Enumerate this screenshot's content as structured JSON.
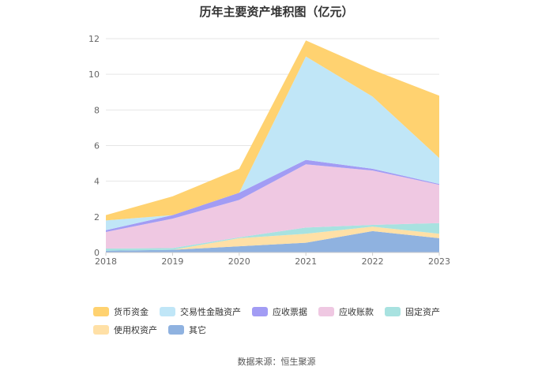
{
  "chart_data": {
    "type": "area",
    "title": "历年主要资产堆积图（亿元）",
    "x": [
      "2018",
      "2019",
      "2020",
      "2021",
      "2022",
      "2023"
    ],
    "ylim": [
      0,
      12
    ],
    "yticks": [
      0,
      2,
      4,
      6,
      8,
      10,
      12
    ],
    "grid": true,
    "legend_position": "bottom",
    "stacked": true,
    "series": [
      {
        "name": "其它",
        "color": "#8fb2e0",
        "values": [
          0.1,
          0.15,
          0.35,
          0.55,
          1.2,
          0.8
        ]
      },
      {
        "name": "使用权资产",
        "color": "#ffe0a6",
        "values": [
          0.0,
          0.0,
          0.45,
          0.5,
          0.25,
          0.25
        ]
      },
      {
        "name": "固定资产",
        "color": "#a8e2e0",
        "values": [
          0.12,
          0.1,
          0.05,
          0.35,
          0.1,
          0.6
        ]
      },
      {
        "name": "应收账款",
        "color": "#efc8e2",
        "values": [
          0.93,
          1.65,
          2.1,
          3.55,
          3.05,
          2.15
        ]
      },
      {
        "name": "应收票据",
        "color": "#a29cf4",
        "values": [
          0.1,
          0.2,
          0.4,
          0.25,
          0.1,
          0.05
        ]
      },
      {
        "name": "交易性金融资产",
        "color": "#c0e6f7",
        "values": [
          0.55,
          0.0,
          0.0,
          5.8,
          4.05,
          1.45
        ]
      },
      {
        "name": "货币资金",
        "color": "#ffd270",
        "values": [
          0.3,
          1.05,
          1.35,
          0.9,
          1.5,
          3.5
        ]
      }
    ]
  },
  "legend_order": [
    "货币资金",
    "交易性金融资产",
    "应收票据",
    "应收账款",
    "固定资产",
    "使用权资产",
    "其它"
  ],
  "source_text": "数据来源：恒生聚源"
}
